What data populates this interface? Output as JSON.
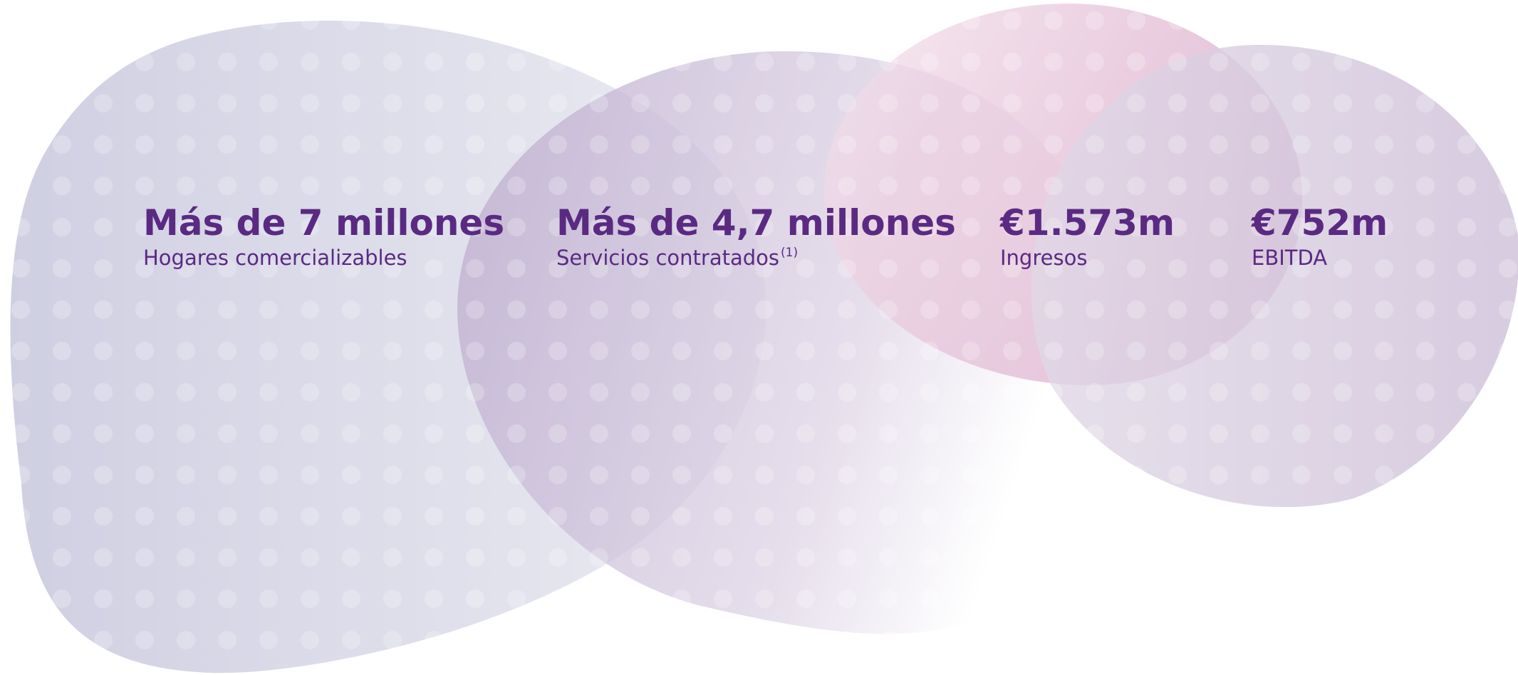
{
  "stats": [
    {
      "value": "Más de 7 millones",
      "label": "Hogares comercializables"
    },
    {
      "value": "Más de 4,7 millones",
      "label": "Servicios contratados",
      "note": "(1)"
    },
    {
      "value": "€1.573m",
      "label": "Ingresos"
    },
    {
      "value": "€752m",
      "label": "EBITDA"
    }
  ]
}
